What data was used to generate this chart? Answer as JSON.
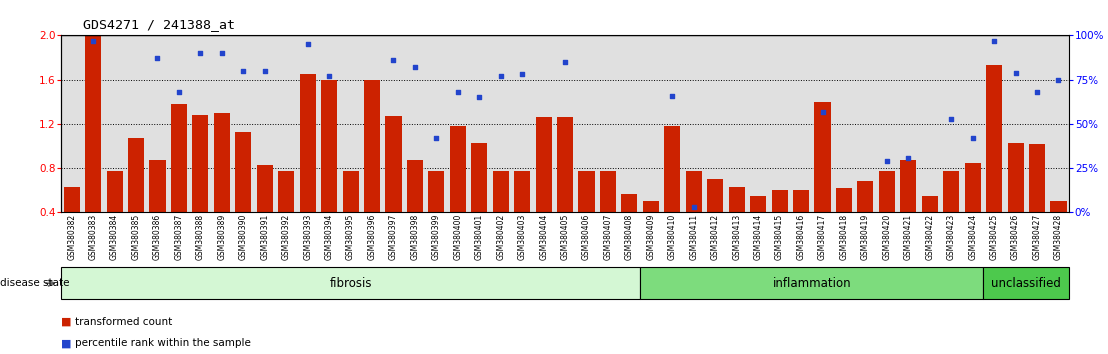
{
  "title": "GDS4271 / 241388_at",
  "samples": [
    "GSM380382",
    "GSM380383",
    "GSM380384",
    "GSM380385",
    "GSM380386",
    "GSM380387",
    "GSM380388",
    "GSM380389",
    "GSM380390",
    "GSM380391",
    "GSM380392",
    "GSM380393",
    "GSM380394",
    "GSM380395",
    "GSM380396",
    "GSM380397",
    "GSM380398",
    "GSM380399",
    "GSM380400",
    "GSM380401",
    "GSM380402",
    "GSM380403",
    "GSM380404",
    "GSM380405",
    "GSM380406",
    "GSM380407",
    "GSM380408",
    "GSM380409",
    "GSM380410",
    "GSM380411",
    "GSM380412",
    "GSM380413",
    "GSM380414",
    "GSM380415",
    "GSM380416",
    "GSM380417",
    "GSM380418",
    "GSM380419",
    "GSM380420",
    "GSM380421",
    "GSM380422",
    "GSM380423",
    "GSM380424",
    "GSM380425",
    "GSM380426",
    "GSM380427",
    "GSM380428"
  ],
  "red_values": [
    0.63,
    2.0,
    0.77,
    1.07,
    0.87,
    1.38,
    1.28,
    1.3,
    1.13,
    0.83,
    0.77,
    1.65,
    1.6,
    0.77,
    1.6,
    1.27,
    0.87,
    0.77,
    1.18,
    1.03,
    0.77,
    0.77,
    1.26,
    1.26,
    0.77,
    0.77,
    0.57,
    0.5,
    1.18,
    0.77,
    0.7,
    0.63,
    0.55,
    0.6,
    0.6,
    1.4,
    0.62,
    0.68,
    0.77,
    0.87,
    0.55,
    0.77,
    0.85,
    1.73,
    1.03,
    1.02,
    0.5
  ],
  "blue_values": [
    null,
    97,
    null,
    null,
    87,
    68,
    90,
    90,
    80,
    80,
    null,
    95,
    77,
    null,
    null,
    86,
    82,
    42,
    68,
    65,
    77,
    78,
    null,
    85,
    null,
    null,
    null,
    null,
    66,
    3,
    null,
    null,
    null,
    null,
    null,
    57,
    null,
    null,
    29,
    31,
    null,
    53,
    42,
    97,
    79,
    68,
    75
  ],
  "groups": [
    {
      "label": "fibrosis",
      "start": 0,
      "end": 27,
      "color": "#d4f7d4"
    },
    {
      "label": "inflammation",
      "start": 27,
      "end": 43,
      "color": "#7ddc7d"
    },
    {
      "label": "unclassified",
      "start": 43,
      "end": 47,
      "color": "#4dc94d"
    }
  ],
  "ylim_left": [
    0.4,
    2.0
  ],
  "ylim_right": [
    0,
    100
  ],
  "yticks_left": [
    0.4,
    0.8,
    1.2,
    1.6,
    2.0
  ],
  "yticks_right": [
    0,
    25,
    50,
    75,
    100
  ],
  "ytick_labels_right": [
    "0%",
    "25%",
    "50%",
    "75%",
    "100%"
  ],
  "bar_color": "#cc2200",
  "dot_color": "#2244cc",
  "plot_bg": "#e0e0e0",
  "fig_bg": "#ffffff",
  "legend_items": [
    "transformed count",
    "percentile rank within the sample"
  ]
}
